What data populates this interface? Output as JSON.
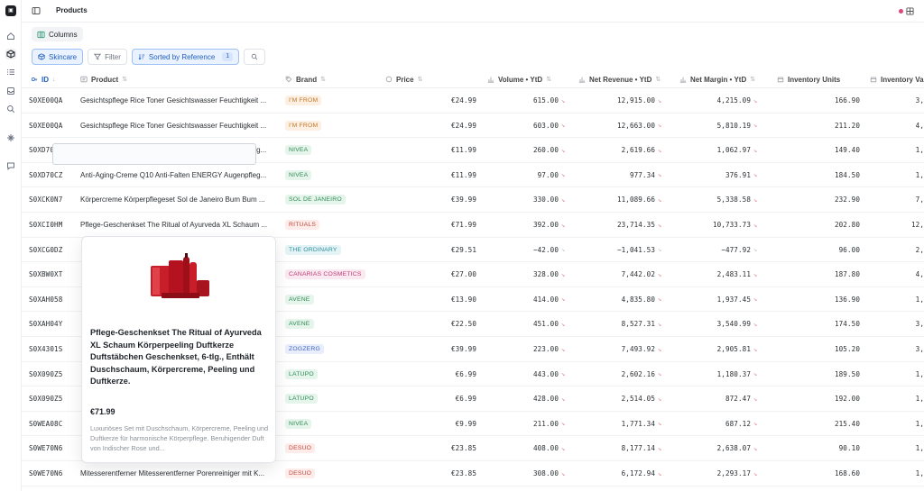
{
  "topbar": {
    "title": "Products"
  },
  "columns_button": {
    "label": "Columns"
  },
  "toolbar": {
    "view_label": "Skincare",
    "filter_label": "Filter",
    "sort_label": "Sorted by Reference",
    "sort_count": "1"
  },
  "headers": {
    "id": "ID",
    "product": "Product",
    "brand": "Brand",
    "price": "Price",
    "volume": "Volume • YtD",
    "revenue": "Net Revenue • YtD",
    "margin": "Net Margin • YtD",
    "inventory": "Inventory Units",
    "inventory_value": "Inventory Val"
  },
  "rows": [
    {
      "id": "S0XE00QA",
      "product": "Gesichtspflege Rice Toner Gesichtswasser Feuchtigkeit ...",
      "brand": "I'M FROM",
      "price": "€24.99",
      "volume": "615.00",
      "revenue": "12,915.00",
      "margin": "4,215.09",
      "inventory": "166.90",
      "inventory_value": "3,"
    },
    {
      "id": "S0XE00QA",
      "product": "Gesichtspflege Rice Toner Gesichtswasser Feuchtigkeit ...",
      "brand": "I'M FROM",
      "price": "€24.99",
      "volume": "603.00",
      "revenue": "12,663.00",
      "margin": "5,810.19",
      "inventory": "211.20",
      "inventory_value": "4,"
    },
    {
      "id": "S0XD70CZ",
      "product": "Anti-Aging-Creme Q10 Anti-Falten ENERGY Augenpfleg...",
      "brand": "NIVEA",
      "price": "€11.99",
      "volume": "260.00",
      "revenue": "2,619.66",
      "margin": "1,062.97",
      "inventory": "149.40",
      "inventory_value": "1,"
    },
    {
      "id": "S0XD70CZ",
      "product": "Anti-Aging-Creme Q10 Anti-Falten ENERGY Augenpfleg...",
      "brand": "NIVEA",
      "price": "€11.99",
      "volume": "97.00",
      "revenue": "977.34",
      "margin": "376.91",
      "inventory": "184.50",
      "inventory_value": "1,"
    },
    {
      "id": "S0XCK0N7",
      "product": "Körpercreme Körperpflegeset Sol de Janeiro Bum Bum ...",
      "brand": "SOL DE JANEIRO",
      "price": "€39.99",
      "volume": "330.00",
      "revenue": "11,089.66",
      "margin": "5,338.58",
      "inventory": "232.90",
      "inventory_value": "7,"
    },
    {
      "id": "S0XCI0HM",
      "product": "Pflege-Geschenkset The Ritual of Ayurveda XL Schaum ...",
      "brand": "RITUALS",
      "price": "€71.99",
      "volume": "392.00",
      "revenue": "23,714.35",
      "margin": "10,733.73",
      "inventory": "202.80",
      "inventory_value": "12,"
    },
    {
      "id": "S0XCG0DZ",
      "product": "",
      "brand": "THE ORDINARY",
      "price": "€29.51",
      "volume": "−42.00",
      "revenue": "−1,041.53",
      "margin": "−477.92",
      "inventory": "96.00",
      "inventory_value": "2,"
    },
    {
      "id": "S0XBW0XT",
      "product": "",
      "brand": "CANARIAS COSMETICS",
      "price": "€27.00",
      "volume": "328.00",
      "revenue": "7,442.02",
      "margin": "2,483.11",
      "inventory": "187.80",
      "inventory_value": "4,"
    },
    {
      "id": "S0XAH058",
      "product": "",
      "brand": "AVENE",
      "price": "€13.90",
      "volume": "414.00",
      "revenue": "4,835.80",
      "margin": "1,937.45",
      "inventory": "136.90",
      "inventory_value": "1,"
    },
    {
      "id": "S0XAH04Y",
      "product": "",
      "brand": "AVENE",
      "price": "€22.50",
      "volume": "451.00",
      "revenue": "8,527.31",
      "margin": "3,540.99",
      "inventory": "174.50",
      "inventory_value": "3,"
    },
    {
      "id": "S0X4301S",
      "product": "",
      "brand": "ZOGZERG",
      "price": "€39.99",
      "volume": "223.00",
      "revenue": "7,493.92",
      "margin": "2,905.81",
      "inventory": "105.20",
      "inventory_value": "3,"
    },
    {
      "id": "S0X090Z5",
      "product": "",
      "brand": "LATUPO",
      "price": "€6.99",
      "volume": "443.00",
      "revenue": "2,602.16",
      "margin": "1,180.37",
      "inventory": "189.50",
      "inventory_value": "1,"
    },
    {
      "id": "S0X090Z5",
      "product": "",
      "brand": "LATUPO",
      "price": "€6.99",
      "volume": "428.00",
      "revenue": "2,514.05",
      "margin": "872.47",
      "inventory": "192.00",
      "inventory_value": "1,"
    },
    {
      "id": "S0WEA08C",
      "product": "",
      "brand": "NIVEA",
      "price": "€9.99",
      "volume": "211.00",
      "revenue": "1,771.34",
      "margin": "687.12",
      "inventory": "215.40",
      "inventory_value": "1,"
    },
    {
      "id": "S0WE70N6",
      "product": "",
      "brand": "DESUO",
      "price": "€23.85",
      "volume": "408.00",
      "revenue": "8,177.14",
      "margin": "2,638.07",
      "inventory": "90.10",
      "inventory_value": "1,"
    },
    {
      "id": "S0WE70N6",
      "product": "Mitesserentferner Mitesserentferner Porenreiniger mit K...",
      "brand": "DESUO",
      "price": "€23.85",
      "volume": "308.00",
      "revenue": "6,172.94",
      "margin": "2,293.17",
      "inventory": "168.60",
      "inventory_value": "1,"
    }
  ],
  "brand_colors": {
    "I'M FROM": {
      "bg": "#fdf0e3",
      "fg": "#c0772a"
    },
    "NIVEA": {
      "bg": "#e6f5ec",
      "fg": "#2f8a55"
    },
    "SOL DE JANEIRO": {
      "bg": "#e6f5ec",
      "fg": "#2f8a55"
    },
    "RITUALS": {
      "bg": "#fdecea",
      "fg": "#c44a3d"
    },
    "THE ORDINARY": {
      "bg": "#e4f4f6",
      "fg": "#2c8d98"
    },
    "CANARIAS COSMETICS": {
      "bg": "#fbe9f1",
      "fg": "#c03a75"
    },
    "AVENE": {
      "bg": "#e6f5ec",
      "fg": "#2f8a55"
    },
    "ZOGZERG": {
      "bg": "#e8eefc",
      "fg": "#3f63c4"
    },
    "LATUPO": {
      "bg": "#e6f5ec",
      "fg": "#2f8a55"
    },
    "DESUO": {
      "bg": "#fdecea",
      "fg": "#c44a3d"
    }
  },
  "popover": {
    "title": "Pflege-Geschenkset The Ritual of Ayurveda XL Schaum Körperpeeling Duftkerze Duftstäbchen Geschenkset, 6-tlg., Enthält Duschschaum, Körpercreme, Peeling und Duftkerze.",
    "price": "€71.99",
    "description": "Luxuriöses Set mit Duschschaum, Körpercreme, Peeling und Duftkerze für harmonische Körperpflege. Beruhigender Duft von Indischer Rose und..."
  }
}
